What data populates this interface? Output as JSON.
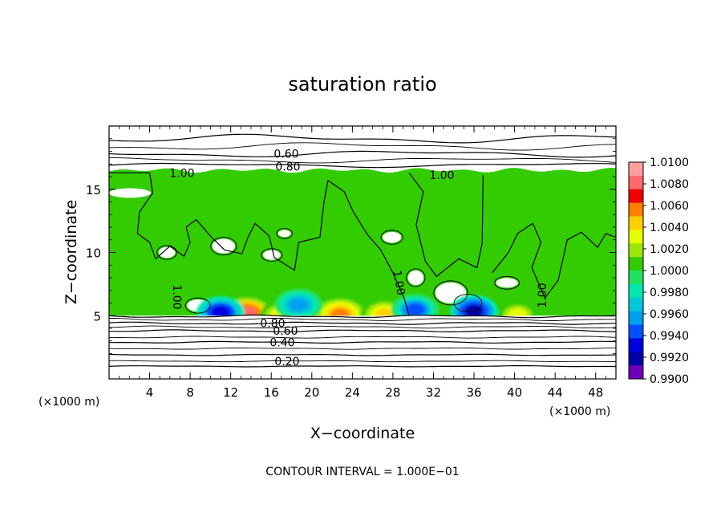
{
  "chart_data": {
    "type": "heatmap",
    "title": "saturation ratio",
    "xlabel": "X−coordinate",
    "ylabel": "Z−coordinate",
    "x_unit": "(×1000 m)",
    "y_unit": "(×1000 m)",
    "xlim": [
      0,
      50
    ],
    "ylim": [
      0,
      20
    ],
    "x_ticks": [
      4,
      8,
      12,
      16,
      20,
      24,
      28,
      32,
      36,
      40,
      44,
      48
    ],
    "x_tick_labels": [
      "4",
      "8",
      "12",
      "16",
      "20",
      "24",
      "28",
      "32",
      "36",
      "40",
      "44",
      "48"
    ],
    "y_ticks": [
      5,
      10,
      15
    ],
    "y_tick_labels": [
      "5",
      "10",
      "15"
    ],
    "footer": "CONTOUR INTERVAL = 1.000E−01",
    "colorbar": {
      "min": 0.99,
      "max": 1.01,
      "labels": [
        "1.0100",
        "1.0080",
        "1.0060",
        "1.0040",
        "1.0020",
        "1.0000",
        "0.9980",
        "0.9960",
        "0.9940",
        "0.9920",
        "0.9900"
      ],
      "colors": [
        "#ffa0a0",
        "#ff6a6a",
        "#f00000",
        "#ff8000",
        "#ffd000",
        "#e6ff00",
        "#9ae60a",
        "#33cc00",
        "#20e060",
        "#00e8b0",
        "#00c8d8",
        "#00a0f0",
        "#0050ff",
        "#0000e0",
        "#0000a8",
        "#7000b8"
      ]
    },
    "contours": [
      {
        "level": 0.2,
        "label": "0.20",
        "z": 1.4
      },
      {
        "level": 0.4,
        "label": "0.40",
        "z": 2.9
      },
      {
        "level": 0.6,
        "label": "0.60",
        "z": 3.8
      },
      {
        "level": 0.6,
        "label": "0.60",
        "z": 17.8
      },
      {
        "level": 0.8,
        "label": "0.80",
        "z": 4.4
      },
      {
        "level": 0.8,
        "label": "0.80",
        "z": 16.8
      },
      {
        "level": 1.0,
        "label": "1.00",
        "z": 16.3
      }
    ],
    "field": {
      "dominant_value": 1.0005,
      "cloud_base_z": 5.0,
      "cloud_top_z": 16.5,
      "supersaturated_cells": [
        {
          "x": 13.6,
          "z": 5.3,
          "value": 1.0075
        },
        {
          "x": 16.8,
          "z": 5.2,
          "value": 1.003
        },
        {
          "x": 22.8,
          "z": 5.2,
          "value": 1.006
        },
        {
          "x": 27.2,
          "z": 5.2,
          "value": 1.005
        },
        {
          "x": 40.3,
          "z": 5.2,
          "value": 1.0035
        }
      ],
      "subsaturated_cells": [
        {
          "x": 11.0,
          "z": 5.4,
          "value": 0.993
        },
        {
          "x": 30.2,
          "z": 5.6,
          "value": 0.995
        },
        {
          "x": 36.0,
          "z": 5.5,
          "value": 0.992
        },
        {
          "x": 18.7,
          "z": 6.0,
          "value": 0.996
        }
      ]
    }
  }
}
